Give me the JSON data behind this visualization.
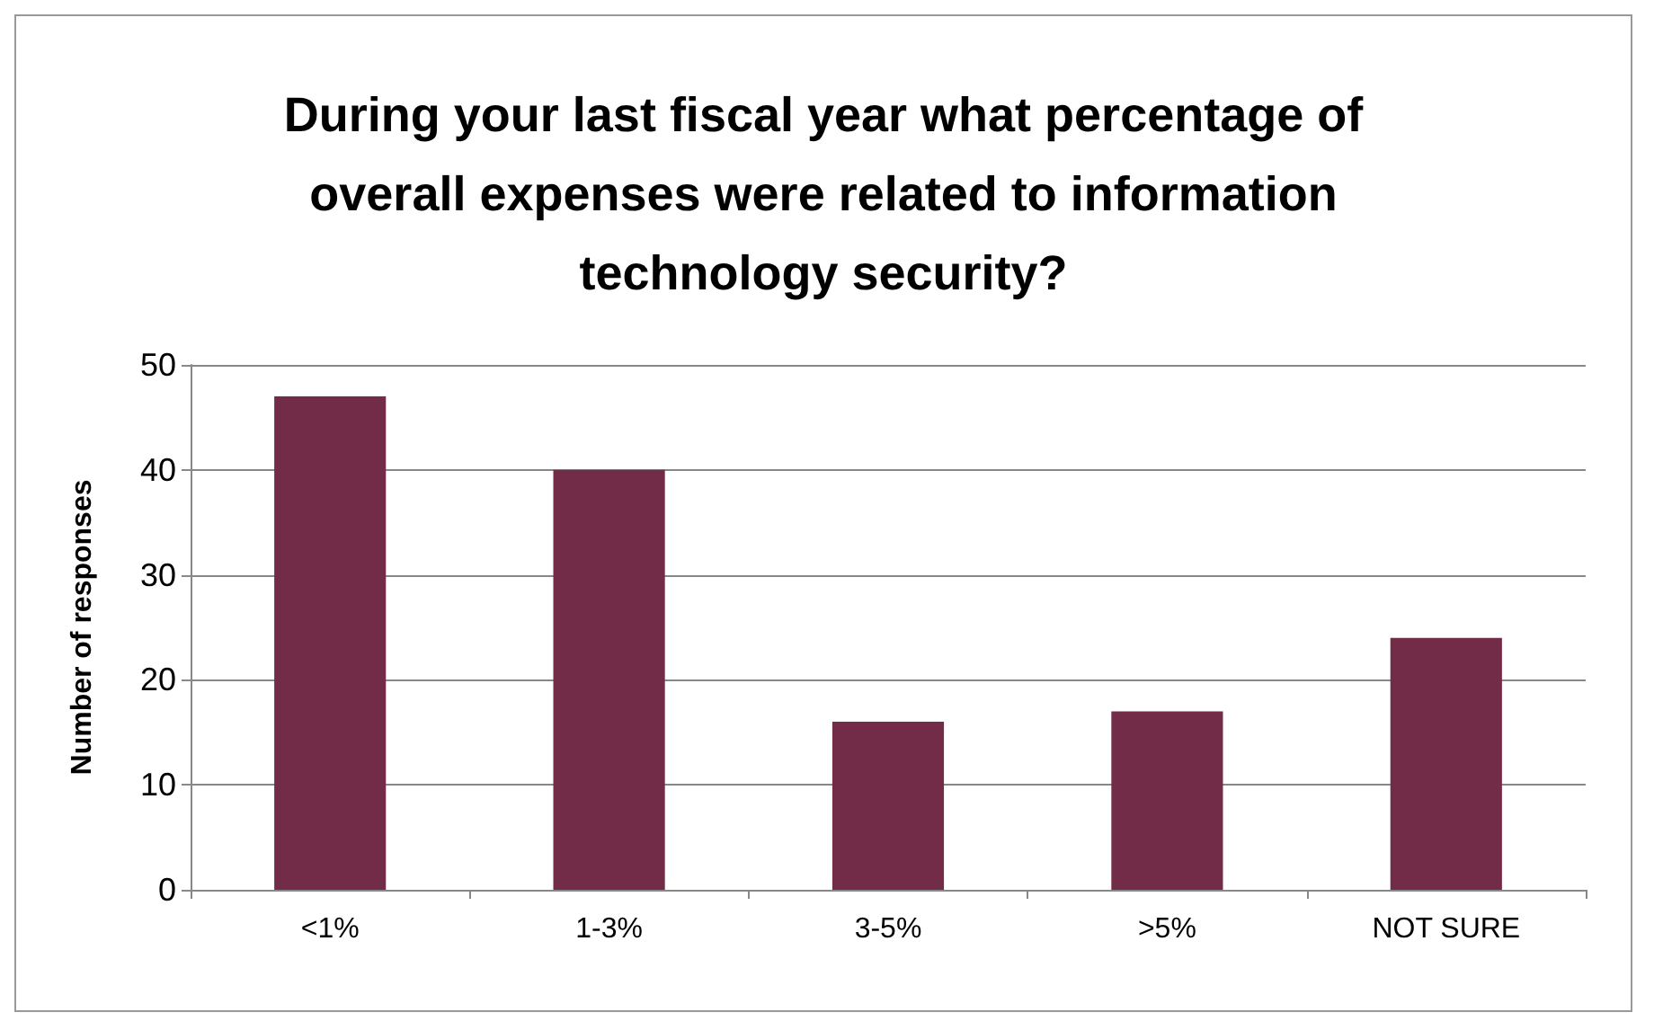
{
  "chart_data": {
    "type": "bar",
    "title": "During your last fiscal year what percentage of overall expenses were related to information technology security?",
    "ylabel": "Number of responses",
    "categories": [
      "<1%",
      "1-3%",
      "3-5%",
      ">5%",
      "NOT SURE"
    ],
    "values": [
      47,
      40,
      16,
      17,
      24
    ],
    "color": "#722c48",
    "ylim": [
      0,
      50
    ],
    "yticks": [
      0,
      10,
      20,
      30,
      40,
      50
    ],
    "grid": "y"
  }
}
